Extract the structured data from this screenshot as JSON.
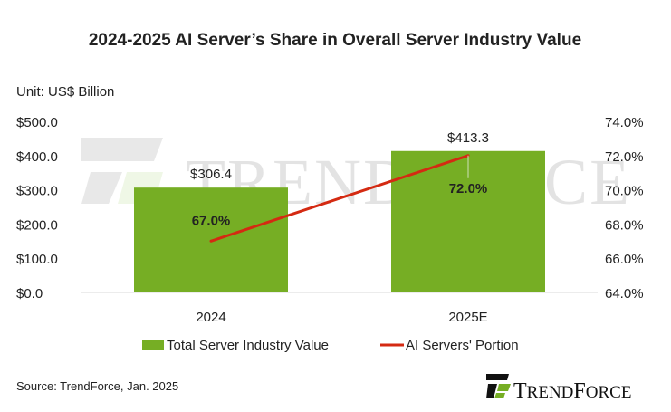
{
  "chart_data": {
    "type": "bar",
    "title": "2024-2025  AI Server’s Share in Overall Server Industry Value",
    "unit_label": "Unit: US$ Billion",
    "categories": [
      "2024",
      "2025E"
    ],
    "series": [
      {
        "name": "Total Server Industry Value",
        "type": "bar",
        "axis": "left",
        "values": [
          306.4,
          413.3
        ],
        "labels": [
          "$306.4",
          "$413.3"
        ],
        "color": "#76ae24"
      },
      {
        "name": "AI Servers' Portion",
        "type": "line",
        "axis": "right",
        "values": [
          67.0,
          72.0
        ],
        "labels": [
          "67.0%",
          "72.0%"
        ],
        "color": "#d42a12"
      }
    ],
    "left_axis": {
      "range": [
        0,
        500
      ],
      "ticks": [
        "$0.0",
        "$100.0",
        "$200.0",
        "$300.0",
        "$400.0",
        "$500.0"
      ]
    },
    "right_axis": {
      "range": [
        64,
        74
      ],
      "ticks": [
        "64.0%",
        "66.0%",
        "68.0%",
        "70.0%",
        "72.0%",
        "74.0%"
      ]
    },
    "grid": false,
    "legend_position": "bottom"
  },
  "footer": {
    "source": "Source: TrendForce, Jan. 2025",
    "logo_text": "TrendForce"
  }
}
